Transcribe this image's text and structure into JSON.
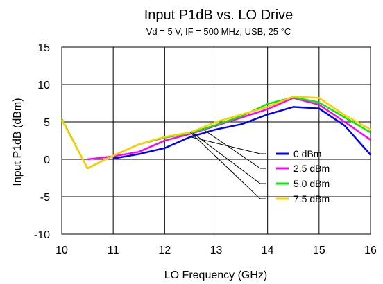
{
  "chart_data": {
    "type": "line",
    "title": "Input P1dB vs. LO Drive",
    "subtitle": "Vd = 5 V, IF = 500 MHz, USB, 25 °C",
    "xlabel": "LO Frequency (GHz)",
    "ylabel": "Input P1dB (dBm)",
    "xlim": [
      10,
      16
    ],
    "ylim": [
      -10,
      15
    ],
    "xticks": [
      "10",
      "11",
      "12",
      "13",
      "14",
      "15",
      "16"
    ],
    "yticks": [
      "15",
      "10",
      "5",
      "0",
      "-5",
      "-10"
    ],
    "grid": true,
    "legend_position": "right-middle",
    "series": [
      {
        "name": "0 dBm",
        "color": "#0000ff",
        "x": [
          11,
          11.5,
          12,
          12.5,
          13,
          13.5,
          14,
          14.5,
          15,
          15.5,
          16
        ],
        "y": [
          0.1,
          0.7,
          1.5,
          3.0,
          4.0,
          4.7,
          6.0,
          7.0,
          6.8,
          4.5,
          0.6
        ]
      },
      {
        "name": "2.5 dBm",
        "color": "#ff00ff",
        "x": [
          10.5,
          11,
          11.5,
          12,
          12.5,
          13,
          13.5,
          14,
          14.5,
          15,
          15.5,
          16
        ],
        "y": [
          0.0,
          0.4,
          1.0,
          2.5,
          3.4,
          4.5,
          5.6,
          6.7,
          8.2,
          7.3,
          5.0,
          2.6
        ]
      },
      {
        "name": "5.0 dBm",
        "color": "#00ee00",
        "x": [
          10,
          10.5,
          11,
          11.5,
          12,
          12.5,
          13,
          13.5,
          14,
          14.5,
          15,
          15.5,
          16
        ],
        "y": [
          5.4,
          -1.2,
          0.5,
          2.0,
          2.9,
          3.5,
          4.6,
          5.8,
          7.4,
          8.3,
          7.6,
          5.6,
          3.6
        ]
      },
      {
        "name": "7.5 dBm",
        "color": "#ffcc00",
        "x": [
          10,
          10.5,
          11,
          11.5,
          12,
          12.5,
          13,
          13.5,
          14,
          14.5,
          15,
          15.5,
          16
        ],
        "y": [
          5.3,
          -1.2,
          0.5,
          2.0,
          3.0,
          3.6,
          5.0,
          6.0,
          7.0,
          8.4,
          8.2,
          5.9,
          4.0
        ]
      }
    ]
  }
}
